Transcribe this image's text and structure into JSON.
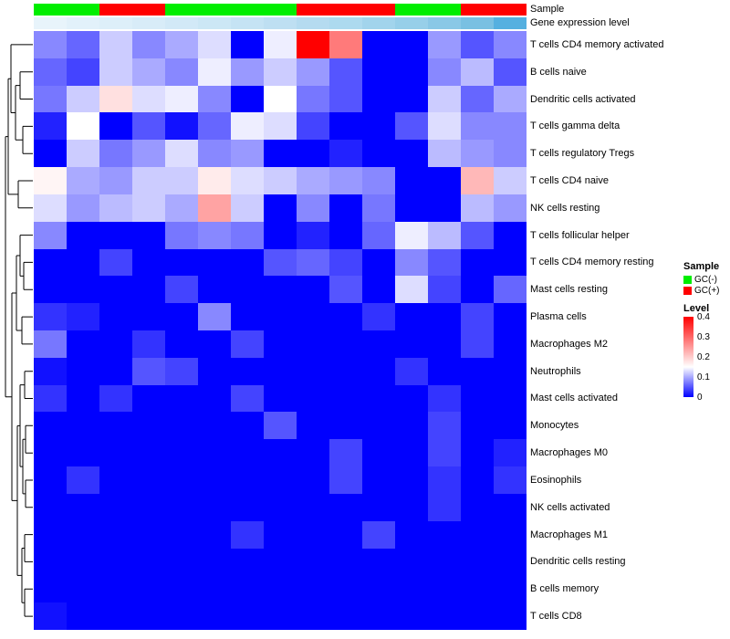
{
  "header": {
    "sample_label": "Sample",
    "expression_label": "Gene expression level"
  },
  "legend": {
    "sample_title": "Sample",
    "sample_items": [
      {
        "label": "GC(-)",
        "color": "#00ee00"
      },
      {
        "label": "GC(+)",
        "color": "#ff0000"
      }
    ],
    "level_title": "Level",
    "level_ticks": [
      "0.4",
      "0.3",
      "0.2",
      "0.1",
      "0"
    ]
  },
  "chart_data": {
    "type": "heatmap",
    "title": "",
    "rows": [
      "T cells CD4 memory activated",
      "B cells naive",
      "Dendritic cells activated",
      "T cells gamma delta",
      "T cells regulatory Tregs",
      "T cells CD4 naive",
      "NK cells resting",
      "T cells follicular helper",
      "T cells CD4 memory resting",
      "Mast cells resting",
      "Plasma cells",
      "Macrophages M2",
      "Neutrophils",
      "Mast cells activated",
      "Monocytes",
      "Macrophages M0",
      "Eosinophils",
      "NK cells activated",
      "Macrophages M1",
      "Dendritic cells resting",
      "B cells memory",
      "T cells CD8"
    ],
    "n_columns": 15,
    "column_labels_shown": false,
    "row_dendrogram": true,
    "column_sample_groups": [
      "GC(-)",
      "GC(-)",
      "GC(+)",
      "GC(+)",
      "GC(-)",
      "GC(-)",
      "GC(-)",
      "GC(-)",
      "GC(+)",
      "GC(+)",
      "GC(+)",
      "GC(-)",
      "GC(-)",
      "GC(+)",
      "GC(+)"
    ],
    "sample_group_colors": {
      "GC(-)": "#00ee00",
      "GC(+)": "#ff0000"
    },
    "column_expression_colors": [
      "#e8f4fb",
      "#e2f1fa",
      "#ddeff9",
      "#d8ecf8",
      "#d2e9f7",
      "#cce7f5",
      "#c5e3f4",
      "#bedff2",
      "#b5dbf0",
      "#addaef",
      "#a2d4ec",
      "#97cfe9",
      "#8ac8e6",
      "#79c0e2",
      "#55b0e0"
    ],
    "color_scale": {
      "min": 0,
      "mid": 0.15,
      "max": 0.4,
      "min_color": "#0000ff",
      "mid_color": "#ffffff",
      "max_color": "#ff0000"
    },
    "values": [
      [
        0.08,
        0.06,
        0.12,
        0.08,
        0.1,
        0.13,
        0.0,
        0.14,
        0.42,
        0.28,
        0.0,
        0.0,
        0.09,
        0.05,
        0.08
      ],
      [
        0.06,
        0.04,
        0.12,
        0.1,
        0.08,
        0.14,
        0.09,
        0.12,
        0.09,
        0.05,
        0.0,
        0.0,
        0.08,
        0.11,
        0.05
      ],
      [
        0.07,
        0.12,
        0.18,
        0.13,
        0.14,
        0.08,
        0.0,
        0.15,
        0.07,
        0.05,
        0.0,
        0.0,
        0.12,
        0.06,
        0.1
      ],
      [
        0.02,
        0.15,
        0.0,
        0.05,
        0.01,
        0.06,
        0.14,
        0.13,
        0.04,
        0.0,
        0.0,
        0.05,
        0.13,
        0.08,
        0.08
      ],
      [
        0.0,
        0.12,
        0.07,
        0.09,
        0.13,
        0.08,
        0.09,
        0.0,
        0.0,
        0.02,
        0.0,
        0.0,
        0.11,
        0.09,
        0.08
      ],
      [
        0.16,
        0.1,
        0.09,
        0.12,
        0.12,
        0.17,
        0.13,
        0.12,
        0.1,
        0.09,
        0.08,
        0.0,
        0.0,
        0.22,
        0.12
      ],
      [
        0.13,
        0.09,
        0.11,
        0.12,
        0.1,
        0.24,
        0.12,
        0.0,
        0.08,
        0.0,
        0.07,
        0.0,
        0.0,
        0.11,
        0.09
      ],
      [
        0.08,
        0.0,
        0.0,
        0.0,
        0.07,
        0.08,
        0.07,
        0.0,
        0.02,
        0.0,
        0.06,
        0.14,
        0.11,
        0.05,
        0.0
      ],
      [
        0.0,
        0.0,
        0.04,
        0.0,
        0.0,
        0.0,
        0.0,
        0.05,
        0.06,
        0.04,
        0.0,
        0.08,
        0.05,
        0.0,
        0.0
      ],
      [
        0.0,
        0.0,
        0.0,
        0.0,
        0.04,
        0.0,
        0.0,
        0.0,
        0.0,
        0.05,
        0.0,
        0.13,
        0.04,
        0.0,
        0.06
      ],
      [
        0.03,
        0.02,
        0.0,
        0.0,
        0.0,
        0.08,
        0.0,
        0.0,
        0.0,
        0.0,
        0.03,
        0.0,
        0.0,
        0.04,
        0.0
      ],
      [
        0.07,
        0.0,
        0.0,
        0.03,
        0.0,
        0.0,
        0.04,
        0.0,
        0.0,
        0.0,
        0.0,
        0.0,
        0.0,
        0.04,
        0.0
      ],
      [
        0.01,
        0.0,
        0.0,
        0.05,
        0.04,
        0.0,
        0.0,
        0.0,
        0.0,
        0.0,
        0.0,
        0.03,
        0.0,
        0.0,
        0.0
      ],
      [
        0.03,
        0.0,
        0.03,
        0.0,
        0.0,
        0.0,
        0.04,
        0.0,
        0.0,
        0.0,
        0.0,
        0.0,
        0.03,
        0.0,
        0.0
      ],
      [
        0.0,
        0.0,
        0.0,
        0.0,
        0.0,
        0.0,
        0.0,
        0.05,
        0.0,
        0.0,
        0.0,
        0.0,
        0.04,
        0.0,
        0.0
      ],
      [
        0.0,
        0.0,
        0.0,
        0.0,
        0.0,
        0.0,
        0.0,
        0.0,
        0.0,
        0.04,
        0.0,
        0.0,
        0.04,
        0.0,
        0.02
      ],
      [
        0.0,
        0.03,
        0.0,
        0.0,
        0.0,
        0.0,
        0.0,
        0.0,
        0.0,
        0.04,
        0.0,
        0.0,
        0.03,
        0.0,
        0.03
      ],
      [
        0.0,
        0.0,
        0.0,
        0.0,
        0.0,
        0.0,
        0.0,
        0.0,
        0.0,
        0.0,
        0.0,
        0.0,
        0.03,
        0.0,
        0.0
      ],
      [
        0.0,
        0.0,
        0.0,
        0.0,
        0.0,
        0.0,
        0.03,
        0.0,
        0.0,
        0.0,
        0.04,
        0.0,
        0.0,
        0.0,
        0.0
      ],
      [
        0.0,
        0.0,
        0.0,
        0.0,
        0.0,
        0.0,
        0.0,
        0.0,
        0.0,
        0.0,
        0.0,
        0.0,
        0.0,
        0.0,
        0.0
      ],
      [
        0.0,
        0.0,
        0.0,
        0.0,
        0.0,
        0.0,
        0.0,
        0.0,
        0.0,
        0.0,
        0.0,
        0.0,
        0.0,
        0.0,
        0.0
      ],
      [
        0.01,
        0.0,
        0.0,
        0.0,
        0.0,
        0.0,
        0.0,
        0.0,
        0.0,
        0.0,
        0.0,
        0.0,
        0.0,
        0.0,
        0.0
      ]
    ]
  }
}
